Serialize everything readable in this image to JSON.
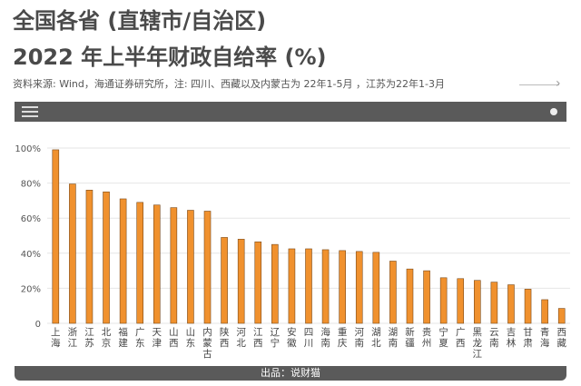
{
  "title_line1": "全国各省 (直辖市/自治区)",
  "title_line2": "2022 年上半年财政自给率 (%)",
  "source_text": "资料来源: Wind，海通证券研究所，注: 四川、西藏以及内蒙古为 22年1-5月 ，江苏为22年1-3月",
  "source_chevron": "›",
  "footer_text": "出品：说财猫",
  "colors": {
    "bar": "#f0912e",
    "bar_stroke": "#7a4a1a",
    "bars_panel": "#5a5a5a"
  },
  "icons": {
    "menu": "hamburger-menu-icon",
    "dot": "circle-dot-icon"
  },
  "chart_data": {
    "type": "bar",
    "categories": [
      "上海",
      "浙江",
      "江苏",
      "北京",
      "福建",
      "广东",
      "天津",
      "山西",
      "山东",
      "内蒙古",
      "陕西",
      "河北",
      "江西",
      "辽宁",
      "安徽",
      "四川",
      "海南",
      "重庆",
      "河南",
      "湖北",
      "湖南",
      "新疆",
      "贵州",
      "宁夏",
      "广西",
      "黑龙江",
      "云南",
      "吉林",
      "甘肃",
      "青海",
      "西藏"
    ],
    "values": [
      99,
      79.5,
      76,
      75,
      71,
      69,
      67.5,
      66,
      64.5,
      64,
      49,
      48,
      46.5,
      45,
      42.5,
      42.5,
      42,
      41.5,
      41,
      40.5,
      35.5,
      31,
      30,
      26,
      25.5,
      24.5,
      23.5,
      22,
      19.5,
      13.5,
      8.5
    ],
    "yticks": [
      "0",
      "20%",
      "40%",
      "60%",
      "80%",
      "100%"
    ],
    "ylim": [
      0,
      100
    ],
    "grid": true
  }
}
